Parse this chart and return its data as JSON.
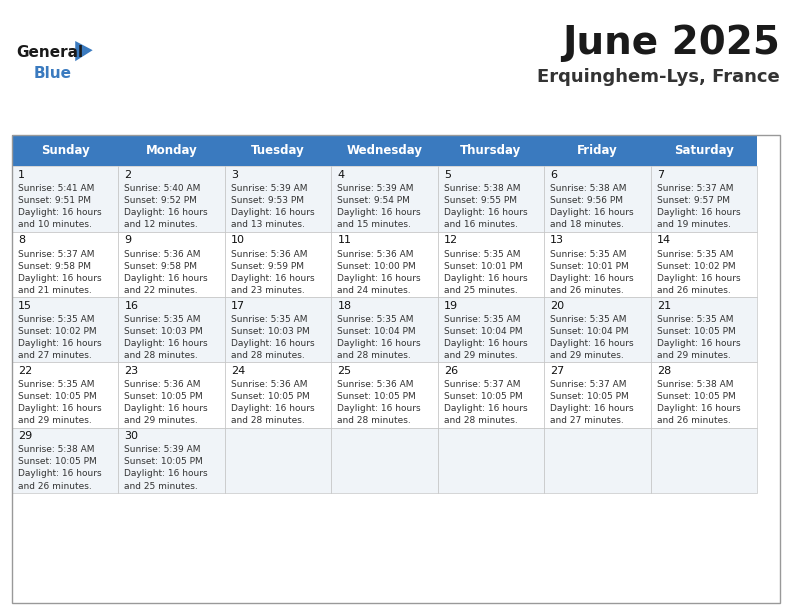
{
  "title": "June 2025",
  "subtitle": "Erquinghem-Lys, France",
  "header_color": "#3a7abf",
  "header_text_color": "#ffffff",
  "bg_color": "#ffffff",
  "cell_bg_even": "#f0f4f8",
  "cell_bg_odd": "#ffffff",
  "border_color": "#bbbbbb",
  "days_of_week": [
    "Sunday",
    "Monday",
    "Tuesday",
    "Wednesday",
    "Thursday",
    "Friday",
    "Saturday"
  ],
  "calendar_data": [
    [
      {
        "day": 1,
        "sunrise": "5:41 AM",
        "sunset": "9:51 PM",
        "daylight": "16 hours and 10 minutes."
      },
      {
        "day": 2,
        "sunrise": "5:40 AM",
        "sunset": "9:52 PM",
        "daylight": "16 hours and 12 minutes."
      },
      {
        "day": 3,
        "sunrise": "5:39 AM",
        "sunset": "9:53 PM",
        "daylight": "16 hours and 13 minutes."
      },
      {
        "day": 4,
        "sunrise": "5:39 AM",
        "sunset": "9:54 PM",
        "daylight": "16 hours and 15 minutes."
      },
      {
        "day": 5,
        "sunrise": "5:38 AM",
        "sunset": "9:55 PM",
        "daylight": "16 hours and 16 minutes."
      },
      {
        "day": 6,
        "sunrise": "5:38 AM",
        "sunset": "9:56 PM",
        "daylight": "16 hours and 18 minutes."
      },
      {
        "day": 7,
        "sunrise": "5:37 AM",
        "sunset": "9:57 PM",
        "daylight": "16 hours and 19 minutes."
      }
    ],
    [
      {
        "day": 8,
        "sunrise": "5:37 AM",
        "sunset": "9:58 PM",
        "daylight": "16 hours and 21 minutes."
      },
      {
        "day": 9,
        "sunrise": "5:36 AM",
        "sunset": "9:58 PM",
        "daylight": "16 hours and 22 minutes."
      },
      {
        "day": 10,
        "sunrise": "5:36 AM",
        "sunset": "9:59 PM",
        "daylight": "16 hours and 23 minutes."
      },
      {
        "day": 11,
        "sunrise": "5:36 AM",
        "sunset": "10:00 PM",
        "daylight": "16 hours and 24 minutes."
      },
      {
        "day": 12,
        "sunrise": "5:35 AM",
        "sunset": "10:01 PM",
        "daylight": "16 hours and 25 minutes."
      },
      {
        "day": 13,
        "sunrise": "5:35 AM",
        "sunset": "10:01 PM",
        "daylight": "16 hours and 26 minutes."
      },
      {
        "day": 14,
        "sunrise": "5:35 AM",
        "sunset": "10:02 PM",
        "daylight": "16 hours and 26 minutes."
      }
    ],
    [
      {
        "day": 15,
        "sunrise": "5:35 AM",
        "sunset": "10:02 PM",
        "daylight": "16 hours and 27 minutes."
      },
      {
        "day": 16,
        "sunrise": "5:35 AM",
        "sunset": "10:03 PM",
        "daylight": "16 hours and 28 minutes."
      },
      {
        "day": 17,
        "sunrise": "5:35 AM",
        "sunset": "10:03 PM",
        "daylight": "16 hours and 28 minutes."
      },
      {
        "day": 18,
        "sunrise": "5:35 AM",
        "sunset": "10:04 PM",
        "daylight": "16 hours and 28 minutes."
      },
      {
        "day": 19,
        "sunrise": "5:35 AM",
        "sunset": "10:04 PM",
        "daylight": "16 hours and 29 minutes."
      },
      {
        "day": 20,
        "sunrise": "5:35 AM",
        "sunset": "10:04 PM",
        "daylight": "16 hours and 29 minutes."
      },
      {
        "day": 21,
        "sunrise": "5:35 AM",
        "sunset": "10:05 PM",
        "daylight": "16 hours and 29 minutes."
      }
    ],
    [
      {
        "day": 22,
        "sunrise": "5:35 AM",
        "sunset": "10:05 PM",
        "daylight": "16 hours and 29 minutes."
      },
      {
        "day": 23,
        "sunrise": "5:36 AM",
        "sunset": "10:05 PM",
        "daylight": "16 hours and 29 minutes."
      },
      {
        "day": 24,
        "sunrise": "5:36 AM",
        "sunset": "10:05 PM",
        "daylight": "16 hours and 28 minutes."
      },
      {
        "day": 25,
        "sunrise": "5:36 AM",
        "sunset": "10:05 PM",
        "daylight": "16 hours and 28 minutes."
      },
      {
        "day": 26,
        "sunrise": "5:37 AM",
        "sunset": "10:05 PM",
        "daylight": "16 hours and 28 minutes."
      },
      {
        "day": 27,
        "sunrise": "5:37 AM",
        "sunset": "10:05 PM",
        "daylight": "16 hours and 27 minutes."
      },
      {
        "day": 28,
        "sunrise": "5:38 AM",
        "sunset": "10:05 PM",
        "daylight": "16 hours and 26 minutes."
      }
    ],
    [
      {
        "day": 29,
        "sunrise": "5:38 AM",
        "sunset": "10:05 PM",
        "daylight": "16 hours and 26 minutes."
      },
      {
        "day": 30,
        "sunrise": "5:39 AM",
        "sunset": "10:05 PM",
        "daylight": "16 hours and 25 minutes."
      },
      null,
      null,
      null,
      null,
      null
    ]
  ],
  "logo_general_color": "#1a1a1a",
  "logo_blue_color": "#3a7abf",
  "logo_triangle_color": "#3a7abf",
  "title_fontsize": 28,
  "subtitle_fontsize": 13,
  "header_fontsize": 8.5,
  "day_num_fontsize": 8,
  "cell_text_fontsize": 6.5
}
